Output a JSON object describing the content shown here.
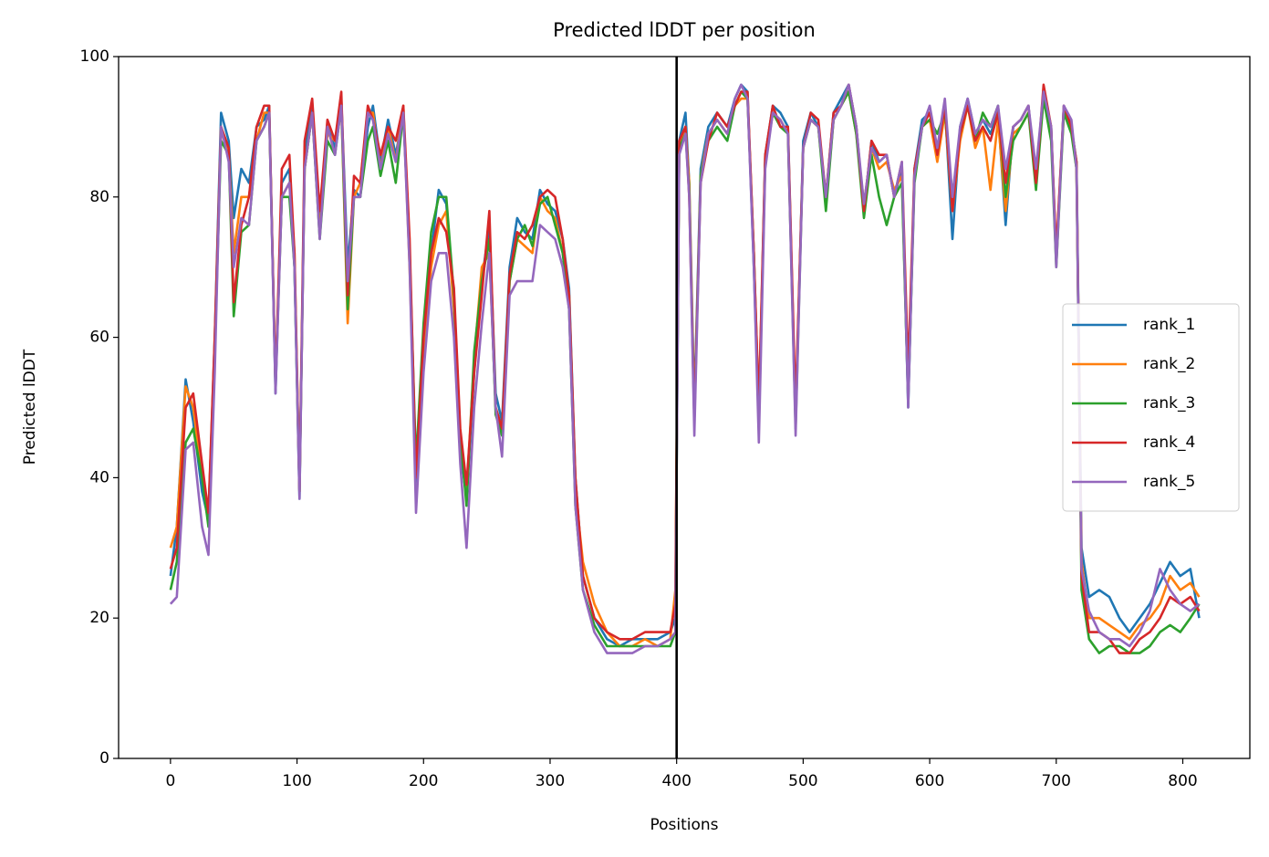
{
  "chart_data": {
    "type": "line",
    "title": "Predicted lDDT per position",
    "xlabel": "Positions",
    "ylabel": "Predicted lDDT",
    "x": [
      0,
      5,
      12,
      18,
      25,
      30,
      35,
      40,
      46,
      50,
      56,
      62,
      68,
      74,
      78,
      83,
      88,
      94,
      98,
      102,
      106,
      112,
      118,
      124,
      130,
      135,
      140,
      145,
      150,
      156,
      160,
      166,
      172,
      178,
      184,
      189,
      194,
      200,
      206,
      212,
      218,
      224,
      229,
      234,
      240,
      246,
      252,
      257,
      262,
      268,
      274,
      280,
      286,
      292,
      298,
      304,
      310,
      315,
      320,
      326,
      335,
      345,
      355,
      365,
      375,
      385,
      395,
      399,
      402,
      407,
      410,
      414,
      419,
      425,
      432,
      440,
      446,
      451,
      456,
      461,
      465,
      470,
      476,
      482,
      488,
      494,
      500,
      506,
      512,
      518,
      524,
      530,
      536,
      542,
      548,
      554,
      560,
      566,
      572,
      578,
      583,
      588,
      594,
      600,
      606,
      612,
      618,
      624,
      630,
      636,
      642,
      648,
      654,
      660,
      666,
      672,
      678,
      684,
      690,
      696,
      700,
      706,
      712,
      716,
      720,
      726,
      734,
      742,
      750,
      758,
      766,
      774,
      782,
      790,
      798,
      806,
      813
    ],
    "series": [
      {
        "name": "rank_1",
        "color": "#1f77b4",
        "values": [
          26,
          33,
          54,
          48,
          38,
          34,
          60,
          92,
          88,
          77,
          84,
          82,
          90,
          91,
          93,
          52,
          82,
          84,
          70,
          37,
          86,
          93,
          76,
          90,
          87,
          94,
          70,
          81,
          80,
          90,
          93,
          85,
          91,
          86,
          92,
          72,
          38,
          58,
          72,
          81,
          79,
          65,
          44,
          37,
          55,
          68,
          76,
          52,
          48,
          70,
          77,
          75,
          74,
          81,
          79,
          78,
          74,
          67,
          40,
          26,
          20,
          17,
          16,
          17,
          17,
          17,
          18,
          20,
          88,
          92,
          82,
          50,
          84,
          90,
          92,
          90,
          94,
          96,
          95,
          70,
          48,
          86,
          93,
          92,
          90,
          48,
          88,
          92,
          90,
          80,
          92,
          94,
          96,
          90,
          78,
          88,
          85,
          86,
          80,
          84,
          50,
          84,
          91,
          92,
          86,
          93,
          74,
          90,
          94,
          89,
          91,
          89,
          92,
          76,
          90,
          91,
          93,
          82,
          95,
          90,
          71,
          93,
          90,
          85,
          30,
          23,
          24,
          23,
          20,
          18,
          20,
          22,
          25,
          28,
          26,
          27,
          20
        ]
      },
      {
        "name": "rank_2",
        "color": "#ff7f0e",
        "values": [
          30,
          33,
          53,
          50,
          40,
          35,
          58,
          90,
          86,
          72,
          80,
          80,
          88,
          92,
          92,
          54,
          80,
          82,
          72,
          38,
          84,
          92,
          75,
          89,
          88,
          93,
          62,
          80,
          82,
          92,
          92,
          84,
          90,
          85,
          93,
          70,
          40,
          56,
          70,
          76,
          78,
          64,
          45,
          38,
          57,
          70,
          72,
          50,
          47,
          68,
          74,
          73,
          72,
          80,
          78,
          77,
          72,
          66,
          38,
          28,
          22,
          18,
          16,
          16,
          17,
          16,
          17,
          24,
          87,
          90,
          82,
          49,
          83,
          89,
          91,
          89,
          93,
          94,
          94,
          72,
          50,
          85,
          92,
          91,
          89,
          49,
          87,
          91,
          90,
          79,
          91,
          93,
          95,
          89,
          79,
          87,
          84,
          85,
          81,
          83,
          52,
          83,
          90,
          91,
          85,
          92,
          78,
          88,
          93,
          87,
          90,
          81,
          91,
          78,
          89,
          90,
          92,
          83,
          94,
          89,
          72,
          92,
          90,
          84,
          28,
          20,
          20,
          19,
          18,
          17,
          19,
          20,
          22,
          26,
          24,
          25,
          23
        ]
      },
      {
        "name": "rank_3",
        "color": "#2ca02c",
        "values": [
          24,
          28,
          45,
          47,
          40,
          33,
          58,
          88,
          86,
          63,
          75,
          76,
          88,
          90,
          92,
          53,
          80,
          80,
          70,
          38,
          84,
          92,
          74,
          88,
          86,
          93,
          64,
          80,
          80,
          88,
          90,
          83,
          88,
          82,
          92,
          72,
          42,
          62,
          75,
          80,
          80,
          66,
          46,
          36,
          58,
          68,
          74,
          49,
          46,
          68,
          74,
          76,
          73,
          79,
          80,
          76,
          72,
          64,
          36,
          24,
          19,
          16,
          16,
          16,
          16,
          16,
          16,
          18,
          87,
          89,
          81,
          48,
          83,
          88,
          90,
          88,
          93,
          95,
          94,
          72,
          48,
          85,
          92,
          90,
          89,
          47,
          87,
          91,
          90,
          78,
          91,
          93,
          95,
          89,
          77,
          86,
          80,
          76,
          80,
          82,
          51,
          82,
          90,
          91,
          89,
          92,
          80,
          89,
          93,
          88,
          92,
          90,
          93,
          80,
          88,
          90,
          92,
          81,
          94,
          88,
          70,
          92,
          89,
          84,
          24,
          17,
          15,
          16,
          16,
          15,
          15,
          16,
          18,
          19,
          18,
          20,
          22
        ]
      },
      {
        "name": "rank_4",
        "color": "#d62728",
        "values": [
          27,
          30,
          50,
          52,
          42,
          35,
          60,
          90,
          87,
          65,
          76,
          80,
          90,
          93,
          93,
          53,
          84,
          86,
          72,
          38,
          88,
          94,
          78,
          91,
          88,
          95,
          66,
          83,
          82,
          93,
          91,
          86,
          90,
          88,
          93,
          74,
          40,
          60,
          72,
          77,
          75,
          67,
          47,
          39,
          55,
          66,
          78,
          50,
          47,
          69,
          75,
          74,
          76,
          80,
          81,
          80,
          74,
          66,
          40,
          26,
          20,
          18,
          17,
          17,
          18,
          18,
          18,
          22,
          88,
          90,
          80,
          48,
          82,
          88,
          92,
          90,
          93,
          95,
          95,
          72,
          50,
          86,
          93,
          90,
          90,
          50,
          87,
          92,
          91,
          80,
          92,
          93,
          96,
          90,
          78,
          88,
          86,
          86,
          80,
          85,
          55,
          84,
          90,
          92,
          86,
          93,
          78,
          89,
          93,
          88,
          90,
          88,
          92,
          82,
          90,
          91,
          93,
          82,
          96,
          90,
          72,
          93,
          90,
          85,
          26,
          18,
          18,
          17,
          15,
          15,
          17,
          18,
          20,
          23,
          22,
          23,
          21
        ]
      },
      {
        "name": "rank_5",
        "color": "#9467bd",
        "values": [
          22,
          23,
          44,
          45,
          33,
          29,
          55,
          90,
          85,
          70,
          77,
          76,
          88,
          90,
          92,
          52,
          80,
          82,
          70,
          37,
          84,
          92,
          74,
          90,
          86,
          93,
          68,
          80,
          80,
          92,
          91,
          84,
          89,
          85,
          92,
          70,
          35,
          55,
          68,
          72,
          72,
          60,
          42,
          30,
          50,
          62,
          72,
          50,
          43,
          66,
          68,
          68,
          68,
          76,
          75,
          74,
          70,
          64,
          36,
          24,
          18,
          15,
          15,
          15,
          16,
          16,
          17,
          18,
          86,
          89,
          80,
          46,
          82,
          89,
          91,
          89,
          94,
          96,
          94,
          70,
          45,
          84,
          92,
          91,
          89,
          46,
          87,
          91,
          90,
          80,
          91,
          93,
          96,
          90,
          79,
          87,
          85,
          86,
          80,
          85,
          50,
          83,
          90,
          93,
          87,
          94,
          80,
          90,
          94,
          89,
          91,
          90,
          93,
          84,
          90,
          91,
          93,
          84,
          95,
          90,
          70,
          93,
          91,
          84,
          27,
          21,
          18,
          17,
          17,
          16,
          18,
          21,
          27,
          24,
          22,
          21,
          22
        ]
      }
    ],
    "vline": 400,
    "vline_color": "#000000",
    "xlim": [
      -41,
      853
    ],
    "ylim": [
      0,
      100
    ],
    "xticks": [
      0,
      100,
      200,
      300,
      400,
      500,
      600,
      700,
      800
    ],
    "yticks": [
      0,
      20,
      40,
      60,
      80,
      100
    ],
    "legend": "center right",
    "grid": false
  }
}
